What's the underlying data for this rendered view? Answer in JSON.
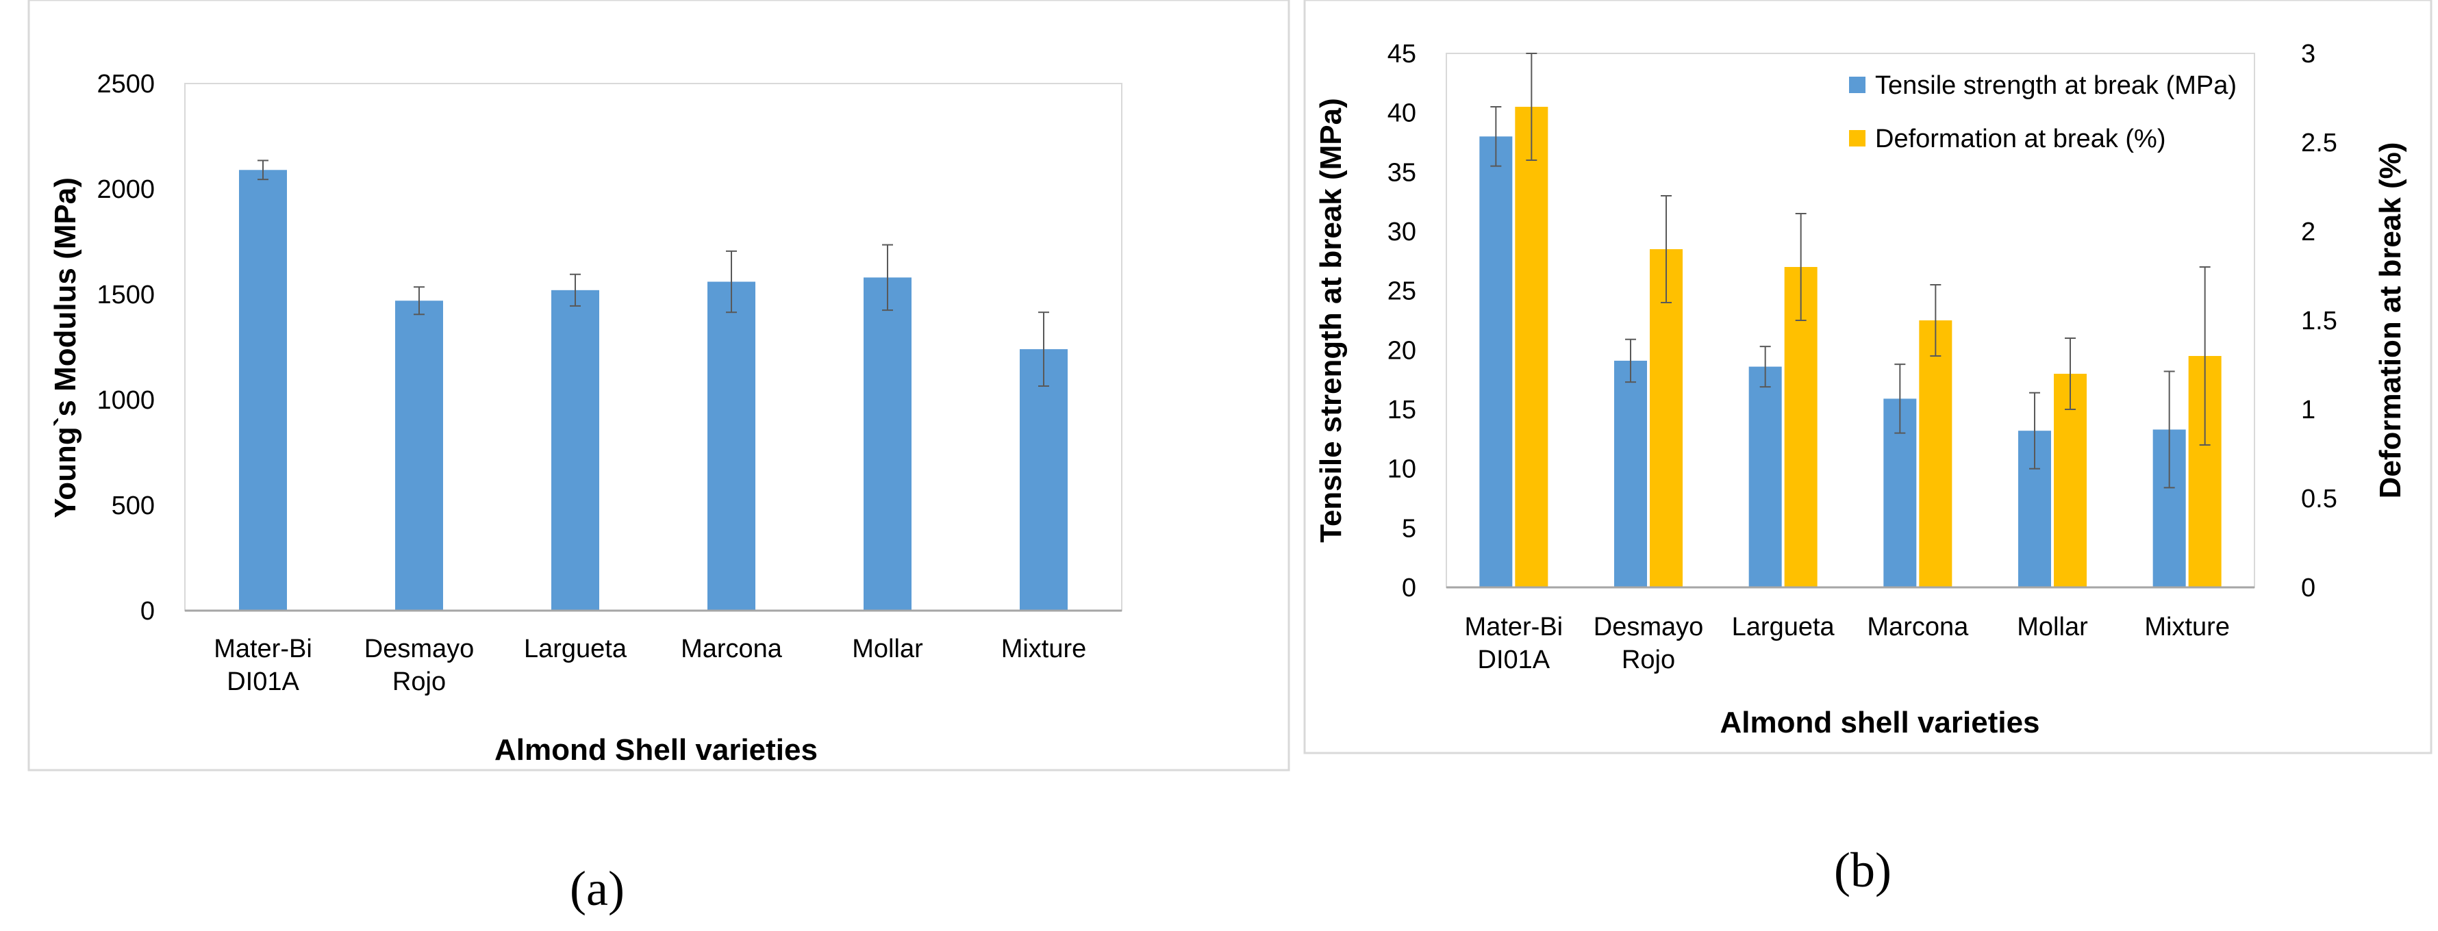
{
  "chart_data": [
    {
      "type": "bar",
      "categories": [
        "Mater-Bi DI01A",
        "Desmayo Rojo",
        "Largueta",
        "Marcona",
        "Mollar",
        "Mixture"
      ],
      "category_lines": [
        [
          "Mater-Bi",
          "DI01A"
        ],
        [
          "Desmayo",
          "Rojo"
        ],
        [
          "Largueta"
        ],
        [
          "Marcona"
        ],
        [
          "Mollar"
        ],
        [
          "Mixture"
        ]
      ],
      "series": [
        {
          "name": "Young`s Modulus (MPa)",
          "axis": "left",
          "values": [
            2090,
            1470,
            1520,
            1560,
            1580,
            1240
          ],
          "errors": [
            45,
            65,
            75,
            145,
            155,
            175
          ]
        }
      ],
      "xlabel": "Almond Shell varieties",
      "ylabel": "Young`s Modulus (MPa)",
      "ylim": [
        0,
        2500
      ],
      "yticks": [
        0,
        500,
        1000,
        1500,
        2000,
        2500
      ],
      "ytick_labels": [
        "0",
        "500",
        "1000",
        "1500",
        "2000",
        "2500"
      ],
      "grid": false,
      "panel_label": "(a)"
    },
    {
      "type": "bar",
      "categories": [
        "Mater-Bi DI01A",
        "Desmayo Rojo",
        "Largueta",
        "Marcona",
        "Mollar",
        "Mixture"
      ],
      "category_lines": [
        [
          "Mater-Bi",
          "DI01A"
        ],
        [
          "Desmayo",
          "Rojo"
        ],
        [
          "Largueta"
        ],
        [
          "Marcona"
        ],
        [
          "Mollar"
        ],
        [
          "Mixture"
        ]
      ],
      "series": [
        {
          "name": "Tensile strength at break (MPa)",
          "axis": "left",
          "values": [
            38.0,
            19.1,
            18.6,
            15.9,
            13.2,
            13.3
          ],
          "errors": [
            2.5,
            1.8,
            1.7,
            2.9,
            3.2,
            4.9
          ]
        },
        {
          "name": "Deformation at break (%)",
          "axis": "right",
          "values": [
            2.7,
            1.9,
            1.8,
            1.5,
            1.2,
            1.3
          ],
          "errors": [
            0.3,
            0.3,
            0.3,
            0.2,
            0.2,
            0.5
          ]
        }
      ],
      "xlabel": "Almond shell varieties",
      "ylabel": "Tensile strength at break (MPa)",
      "y2label": "Deformation at break (%)",
      "ylim": [
        0,
        45
      ],
      "yticks": [
        0,
        5,
        10,
        15,
        20,
        25,
        30,
        35,
        40,
        45
      ],
      "ytick_labels": [
        "0",
        "5",
        "10",
        "15",
        "20",
        "25",
        "30",
        "35",
        "40",
        "45"
      ],
      "y2lim": [
        0,
        3
      ],
      "y2ticks": [
        0,
        0.5,
        1,
        1.5,
        2,
        2.5,
        3
      ],
      "y2tick_labels": [
        "0",
        "0.5",
        "1",
        "1.5",
        "2",
        "2.5",
        "3"
      ],
      "legend_position": "top-right",
      "grid": false,
      "panel_label": "(b)"
    }
  ],
  "colors": {
    "blue": "#5b9bd5",
    "orange": "#ffc000",
    "axis": "#a6a6a6",
    "frame": "#d9d9d9",
    "error": "#595959"
  }
}
